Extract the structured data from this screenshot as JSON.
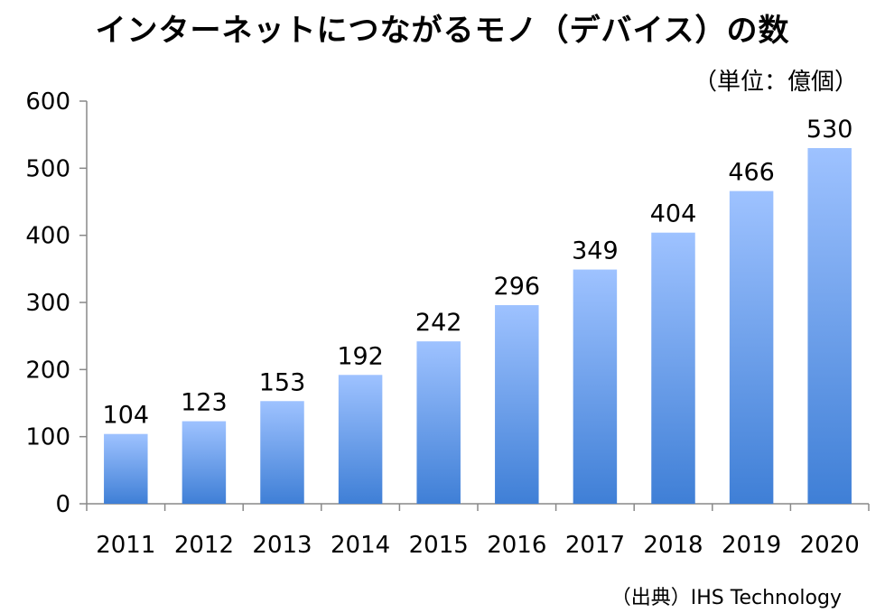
{
  "title": "インターネットにつながるモノ（デバイス）の数",
  "unit_label": "（単位：億個）",
  "source": "（出典）IHS Technology",
  "colors": {
    "bar_top": "#9ec2ff",
    "bar_bottom": "#3f7fd6",
    "axis": "#888888"
  },
  "chart_data": {
    "type": "bar",
    "title": "インターネットにつながるモノ（デバイス）の数",
    "xlabel": "",
    "ylabel": "",
    "categories": [
      "2011",
      "2012",
      "2013",
      "2014",
      "2015",
      "2016",
      "2017",
      "2018",
      "2019",
      "2020"
    ],
    "values": [
      104,
      123,
      153,
      192,
      242,
      296,
      349,
      404,
      466,
      530
    ],
    "ylim": [
      0,
      600
    ],
    "yticks": [
      0,
      100,
      200,
      300,
      400,
      500,
      600
    ],
    "grid": false,
    "legend": "none"
  }
}
